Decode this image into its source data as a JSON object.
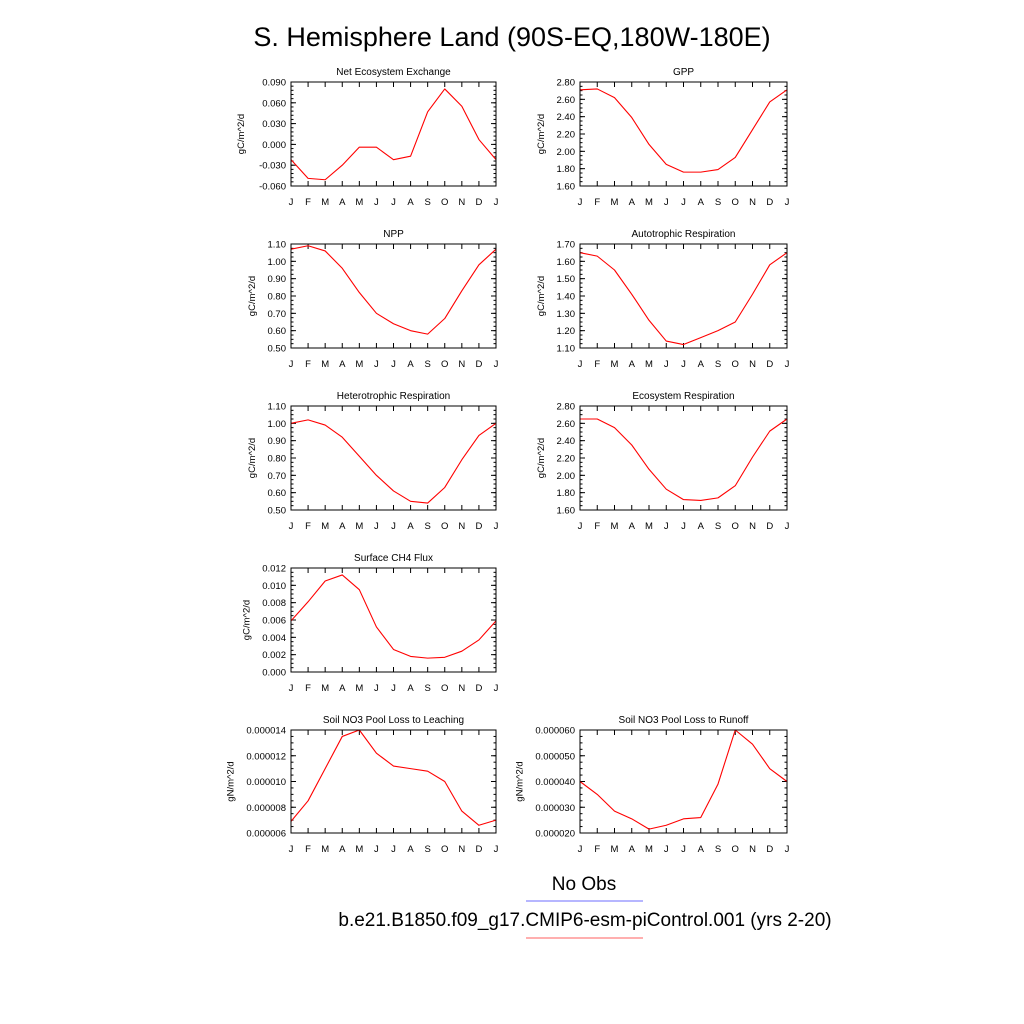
{
  "page": {
    "title": "S. Hemisphere Land (90S-EQ,180W-180E)"
  },
  "legend": {
    "items": [
      {
        "label": "No Obs",
        "color": "#8a8aff"
      },
      {
        "label": "b.e21.B1850.f09_g17.CMIP6-esm-piControl.001 (yrs 2-20)",
        "color": "#ff7f7f"
      }
    ]
  },
  "chart_data": [
    {
      "type": "line",
      "title": "Net Ecosystem Exchange",
      "ylabel": "gC/m^2/d",
      "categories": [
        "J",
        "F",
        "M",
        "A",
        "M",
        "J",
        "J",
        "A",
        "S",
        "O",
        "N",
        "D",
        "J"
      ],
      "ylim": [
        -0.06,
        0.09
      ],
      "yticks": [
        "-0.060",
        "-0.030",
        "0.000",
        "0.030",
        "0.060",
        "0.090"
      ],
      "yminor_step": 0.006,
      "series": [
        {
          "color": "#ff0000",
          "values": [
            -0.022,
            -0.049,
            -0.051,
            -0.03,
            -0.004,
            -0.004,
            -0.022,
            -0.017,
            0.047,
            0.08,
            0.055,
            0.007,
            -0.022
          ]
        }
      ]
    },
    {
      "type": "line",
      "title": "GPP",
      "ylabel": "gC/m^2/d",
      "categories": [
        "J",
        "F",
        "M",
        "A",
        "M",
        "J",
        "J",
        "A",
        "S",
        "O",
        "N",
        "D",
        "J"
      ],
      "ylim": [
        1.6,
        2.8
      ],
      "yticks": [
        "1.60",
        "1.80",
        "2.00",
        "2.20",
        "2.40",
        "2.60",
        "2.80"
      ],
      "yminor_step": 0.05,
      "series": [
        {
          "color": "#ff0000",
          "values": [
            2.71,
            2.72,
            2.62,
            2.39,
            2.08,
            1.85,
            1.76,
            1.76,
            1.79,
            1.93,
            2.25,
            2.57,
            2.71
          ]
        }
      ]
    },
    {
      "type": "line",
      "title": "NPP",
      "ylabel": "gC/m^2/d",
      "categories": [
        "J",
        "F",
        "M",
        "A",
        "M",
        "J",
        "J",
        "A",
        "S",
        "O",
        "N",
        "D",
        "J"
      ],
      "ylim": [
        0.5,
        1.1
      ],
      "yticks": [
        "0.50",
        "0.60",
        "0.70",
        "0.80",
        "0.90",
        "1.00",
        "1.10"
      ],
      "yminor_step": 0.025,
      "series": [
        {
          "color": "#ff0000",
          "values": [
            1.07,
            1.09,
            1.06,
            0.96,
            0.82,
            0.7,
            0.64,
            0.6,
            0.58,
            0.67,
            0.83,
            0.98,
            1.07
          ]
        }
      ]
    },
    {
      "type": "line",
      "title": "Autotrophic Respiration",
      "ylabel": "gC/m^2/d",
      "categories": [
        "J",
        "F",
        "M",
        "A",
        "M",
        "J",
        "J",
        "A",
        "S",
        "O",
        "N",
        "D",
        "J"
      ],
      "ylim": [
        1.1,
        1.7
      ],
      "yticks": [
        "1.10",
        "1.20",
        "1.30",
        "1.40",
        "1.50",
        "1.60",
        "1.70"
      ],
      "yminor_step": 0.025,
      "series": [
        {
          "color": "#ff0000",
          "values": [
            1.65,
            1.63,
            1.55,
            1.41,
            1.26,
            1.14,
            1.12,
            1.16,
            1.2,
            1.25,
            1.41,
            1.58,
            1.65
          ]
        }
      ]
    },
    {
      "type": "line",
      "title": "Heterotrophic Respiration",
      "ylabel": "gC/m^2/d",
      "categories": [
        "J",
        "F",
        "M",
        "A",
        "M",
        "J",
        "J",
        "A",
        "S",
        "O",
        "N",
        "D",
        "J"
      ],
      "ylim": [
        0.5,
        1.1
      ],
      "yticks": [
        "0.50",
        "0.60",
        "0.70",
        "0.80",
        "0.90",
        "1.00",
        "1.10"
      ],
      "yminor_step": 0.025,
      "series": [
        {
          "color": "#ff0000",
          "values": [
            1.0,
            1.02,
            0.99,
            0.92,
            0.81,
            0.7,
            0.61,
            0.55,
            0.54,
            0.63,
            0.79,
            0.93,
            1.0
          ]
        }
      ]
    },
    {
      "type": "line",
      "title": "Ecosystem Respiration",
      "ylabel": "gC/m^2/d",
      "categories": [
        "J",
        "F",
        "M",
        "A",
        "M",
        "J",
        "J",
        "A",
        "S",
        "O",
        "N",
        "D",
        "J"
      ],
      "ylim": [
        1.6,
        2.8
      ],
      "yticks": [
        "1.60",
        "1.80",
        "2.00",
        "2.20",
        "2.40",
        "2.60",
        "2.80"
      ],
      "yminor_step": 0.05,
      "series": [
        {
          "color": "#ff0000",
          "values": [
            2.65,
            2.65,
            2.55,
            2.35,
            2.07,
            1.84,
            1.72,
            1.71,
            1.74,
            1.88,
            2.21,
            2.51,
            2.65
          ]
        }
      ]
    },
    {
      "type": "line",
      "title": "Surface CH4 Flux",
      "ylabel": "gC/m^2/d",
      "categories": [
        "J",
        "F",
        "M",
        "A",
        "M",
        "J",
        "J",
        "A",
        "S",
        "O",
        "N",
        "D",
        "J"
      ],
      "ylim": [
        0.0,
        0.012
      ],
      "yticks": [
        "0.000",
        "0.002",
        "0.004",
        "0.006",
        "0.008",
        "0.010",
        "0.012"
      ],
      "yminor_step": 0.0005,
      "series": [
        {
          "color": "#ff0000",
          "values": [
            0.0059,
            0.0081,
            0.0105,
            0.0112,
            0.0095,
            0.0052,
            0.0026,
            0.0018,
            0.0016,
            0.0017,
            0.0024,
            0.0037,
            0.0059
          ]
        }
      ]
    },
    {
      "type": "line",
      "title": "Soil NO3 Pool Loss to Leaching",
      "ylabel": "gN/m^2/d",
      "categories": [
        "J",
        "F",
        "M",
        "A",
        "M",
        "J",
        "J",
        "A",
        "S",
        "O",
        "N",
        "D",
        "J"
      ],
      "ylim": [
        6e-06,
        1.4e-05
      ],
      "yticks": [
        "0.000006",
        "0.000008",
        "0.000010",
        "0.000012",
        "0.000014"
      ],
      "yminor_step": 5e-07,
      "series": [
        {
          "color": "#ff0000",
          "values": [
            6.9e-06,
            8.5e-06,
            1.1e-05,
            1.35e-05,
            1.4e-05,
            1.22e-05,
            1.12e-05,
            1.1e-05,
            1.08e-05,
            1e-05,
            7.7e-06,
            6.6e-06,
            7e-06
          ]
        }
      ]
    },
    {
      "type": "line",
      "title": "Soil NO3 Pool Loss to Runoff",
      "ylabel": "gN/m^2/d",
      "categories": [
        "J",
        "F",
        "M",
        "A",
        "M",
        "J",
        "J",
        "A",
        "S",
        "O",
        "N",
        "D",
        "J"
      ],
      "ylim": [
        2e-05,
        6e-05
      ],
      "yticks": [
        "0.000020",
        "0.000030",
        "0.000040",
        "0.000050",
        "0.000060"
      ],
      "yminor_step": 2.5e-06,
      "series": [
        {
          "color": "#ff0000",
          "values": [
            4e-05,
            3.5e-05,
            2.85e-05,
            2.55e-05,
            2.15e-05,
            2.3e-05,
            2.55e-05,
            2.6e-05,
            3.9e-05,
            6e-05,
            5.45e-05,
            4.5e-05,
            4e-05
          ]
        }
      ]
    }
  ]
}
